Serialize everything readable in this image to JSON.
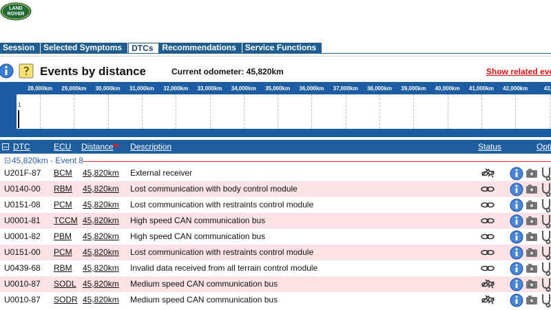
{
  "logo": {
    "line1": "LAND",
    "line2": "ROVER"
  },
  "tabs": [
    "Session",
    "Selected Symptoms",
    "DTCs",
    "Recommendations",
    "Service Functions"
  ],
  "header": {
    "title": "Events by distance",
    "odometer": "Current odometer: 45,820km",
    "link": "Show related eve"
  },
  "timeline": {
    "ticks": [
      "28,000km",
      "29,000km",
      "30,000km",
      "31,000km",
      "32,000km",
      "33,000km",
      "34,000km",
      "35,000km",
      "36,000km",
      "37,000km",
      "38,000km",
      "39,000km",
      "40,000km",
      "41,000km",
      "42,000km",
      "43,0"
    ],
    "marker": "1"
  },
  "table": {
    "columns": [
      "DTC",
      "ECU",
      "Distance",
      "Description",
      "Status",
      "Opti"
    ],
    "group": "45,820km - Event 8",
    "rows": [
      [
        "U201F-87",
        "BCM",
        "45,820km",
        "External receiver"
      ],
      [
        "U0140-00",
        "RBM",
        "45,820km",
        "Lost communication with body control module"
      ],
      [
        "U0151-08",
        "PCM",
        "45,820km",
        "Lost communication with restraints control module"
      ],
      [
        "U0001-81",
        "TCCM",
        "45,820km",
        "High speed CAN communication bus"
      ],
      [
        "U0001-82",
        "PBM",
        "45,820km",
        "High speed CAN communication bus"
      ],
      [
        "U0151-00",
        "PCM",
        "45,820km",
        "Lost communication with restraints control module"
      ],
      [
        "U0439-68",
        "RBM",
        "45,820km",
        "Invalid data received from all terrain control module"
      ],
      [
        "U0010-87",
        "SODL",
        "45,820km",
        "Medium speed CAN communication bus"
      ],
      [
        "U0010-87",
        "SODR",
        "45,820km",
        "Medium speed CAN communication bus"
      ]
    ]
  }
}
